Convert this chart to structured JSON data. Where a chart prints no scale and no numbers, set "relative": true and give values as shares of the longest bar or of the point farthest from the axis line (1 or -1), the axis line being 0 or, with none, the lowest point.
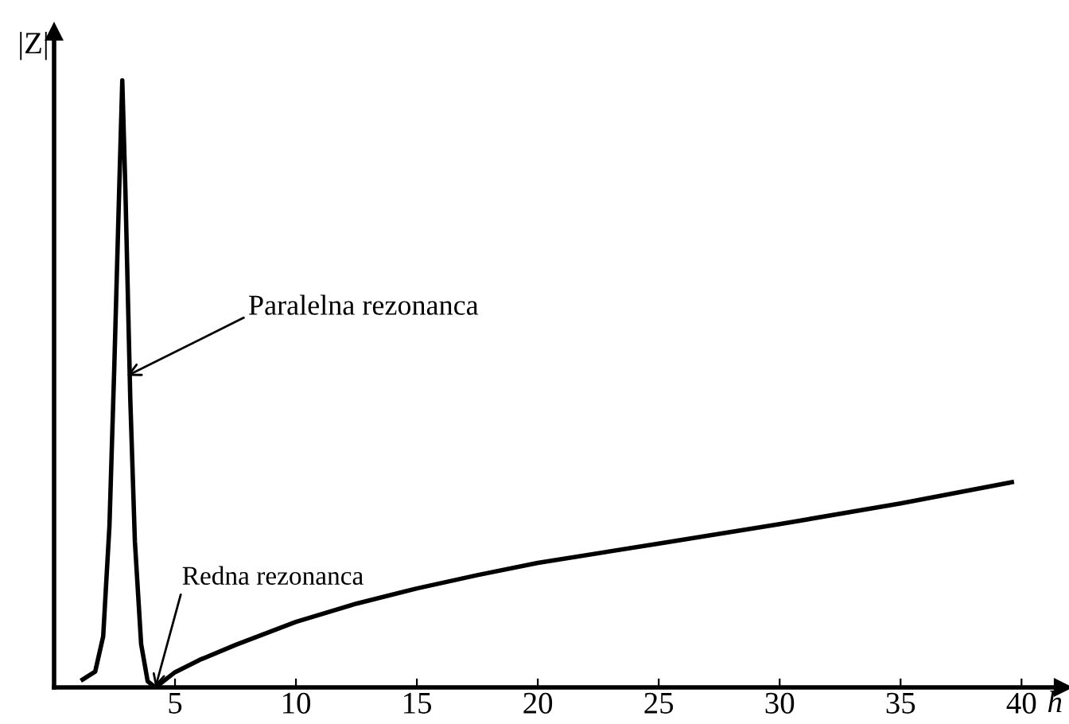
{
  "chart_data": {
    "type": "line",
    "relative": true,
    "xlabel": "h",
    "ylabel": "|Z|",
    "x": [
      1.18,
      1.7,
      2.03,
      2.29,
      2.49,
      2.69,
      2.82,
      2.95,
      3.15,
      3.34,
      3.6,
      3.87,
      4.19,
      5,
      6,
      7.5,
      10,
      12.5,
      15,
      17.5,
      20,
      25,
      30,
      35,
      39.6
    ],
    "series": [
      {
        "color": "#000000",
        "values": [
          0.013,
          0.026,
          0.084,
          0.267,
          0.529,
          0.817,
          1.0,
          0.817,
          0.476,
          0.241,
          0.071,
          0.01,
          0,
          0.025,
          0.045,
          0.07,
          0.108,
          0.138,
          0.163,
          0.185,
          0.205,
          0.237,
          0.269,
          0.303,
          0.338
        ]
      }
    ],
    "xlim": [
      0,
      41.7
    ],
    "xticks": [
      5,
      10,
      15,
      20,
      25,
      30,
      35,
      40
    ],
    "annotations": [
      {
        "text": "Paralelna rezonanca",
        "x": 3.0,
        "y": 0.513
      },
      {
        "text": "Redna rezonanca",
        "x": 4.19,
        "y": 0
      }
    ],
    "grid": false,
    "marker": "none",
    "line_style": "solid"
  }
}
